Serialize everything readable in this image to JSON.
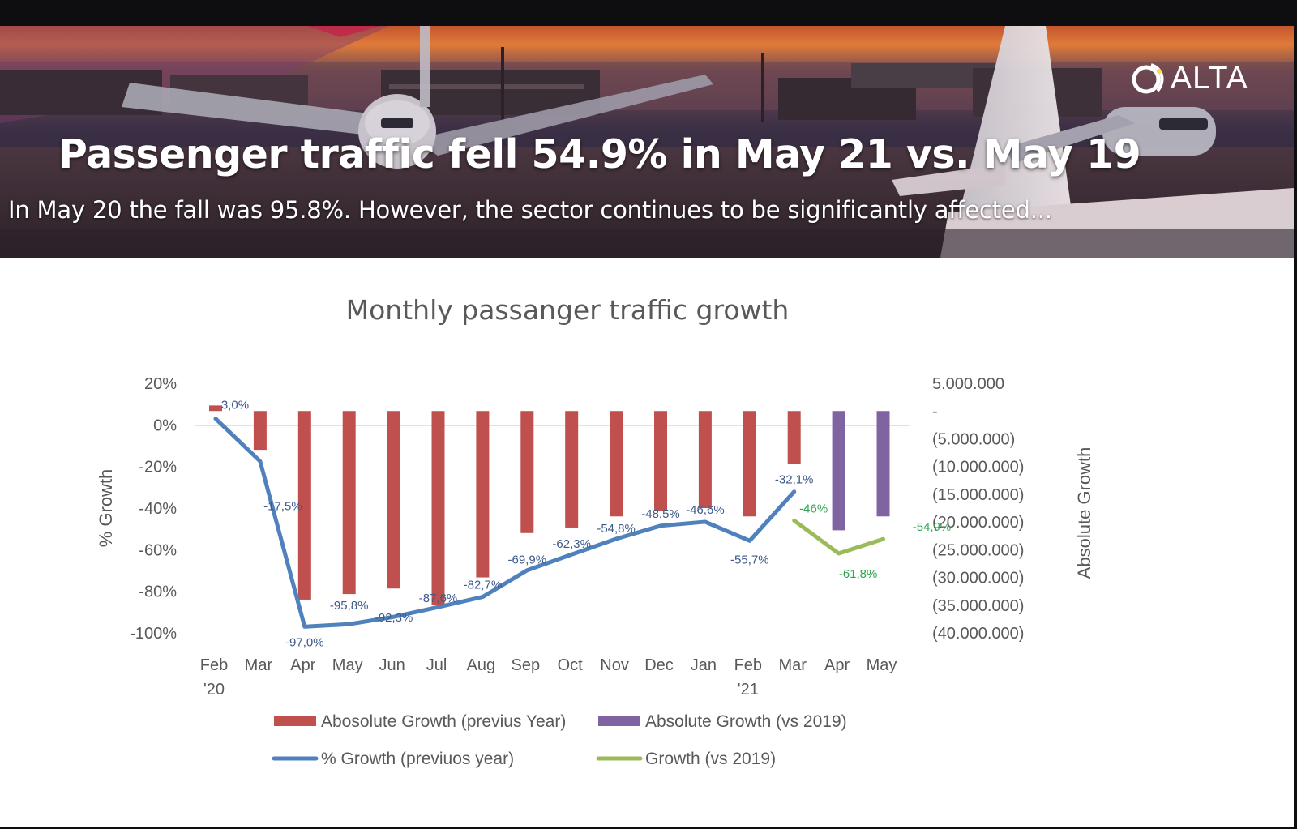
{
  "brand": {
    "logo_text": "ALTA"
  },
  "header": {
    "title": "Passenger traffic fell 54.9% in May 21 vs. May 19",
    "subtitle": "In May 20 the fall was 95.8%. However, the sector continues to be significantly affected..."
  },
  "colors": {
    "bar_prev_year": "#c0504d",
    "bar_vs_2019": "#8064a2",
    "line_prev_year": "#4f81bd",
    "line_vs_2019": "#9bbb59",
    "label_prev_year": "#3e5a8a",
    "label_vs_2019": "#2fa84f"
  },
  "chart_data": {
    "type": "bar",
    "title": "Monthly passanger traffic growth",
    "ylabel_left": "% Growth",
    "ylabel_right": "Absolute Growth",
    "categories": [
      "Feb '20",
      "Mar",
      "Apr",
      "May",
      "Jun",
      "Jul",
      "Aug",
      "Sep",
      "Oct",
      "Nov",
      "Dec",
      "Jan",
      "Feb '21",
      "Mar",
      "Apr",
      "May"
    ],
    "left_axis": {
      "min": -100,
      "max": 20,
      "step": 20,
      "tick_labels": [
        "20%",
        "0%",
        "-20%",
        "-40%",
        "-60%",
        "-80%",
        "-100%"
      ]
    },
    "right_axis": {
      "min": -40000000,
      "max": 5000000,
      "step": 5000000,
      "tick_labels": [
        "5.000.000",
        "-",
        "(5.000.000)",
        "(10.000.000)",
        "(15.000.000)",
        "(20.000.000)",
        "(25.000.000)",
        "(30.000.000)",
        "(35.000.000)",
        "(40.000.000)"
      ]
    },
    "series": [
      {
        "name": "Abosolute Growth (previus Year)",
        "type": "bar",
        "axis": "right",
        "values": [
          1000000,
          -7000000,
          -34000000,
          -33000000,
          -32000000,
          -35000000,
          -30000000,
          -22000000,
          -21000000,
          -19000000,
          -18000000,
          -17500000,
          -19000000,
          -9500000,
          null,
          null
        ]
      },
      {
        "name": "Absolute Growth (vs 2019)",
        "type": "bar",
        "axis": "right",
        "values": [
          null,
          null,
          null,
          null,
          null,
          null,
          null,
          null,
          null,
          null,
          null,
          null,
          null,
          null,
          -21500000,
          -19000000
        ]
      },
      {
        "name": "% Growth (previuos year)",
        "type": "line",
        "axis": "left",
        "values": [
          3.0,
          -17.5,
          -97.0,
          -95.8,
          -92.3,
          -87.6,
          -82.7,
          -69.9,
          -62.3,
          -54.8,
          -48.5,
          -46.6,
          -55.7,
          -32.1,
          null,
          null
        ],
        "labels": [
          "3,0%",
          "-17,5%",
          "-97,0%",
          "-95,8%",
          "-92,3%",
          "-87,6%",
          "-82,7%",
          "-69,9%",
          "-62,3%",
          "-54,8%",
          "-48,5%",
          "-46,6%",
          "-55,7%",
          "-32,1%",
          "",
          ""
        ]
      },
      {
        "name": "Growth (vs 2019)",
        "type": "line",
        "axis": "left",
        "values": [
          null,
          null,
          null,
          null,
          null,
          null,
          null,
          null,
          null,
          null,
          null,
          null,
          null,
          -46.0,
          -61.8,
          -54.9
        ],
        "labels": [
          "",
          "",
          "",
          "",
          "",
          "",
          "",
          "",
          "",
          "",
          "",
          "",
          "",
          "-46%",
          "-61,8%",
          "-54,9%"
        ]
      }
    ],
    "grid": false,
    "legend_position": "bottom"
  }
}
